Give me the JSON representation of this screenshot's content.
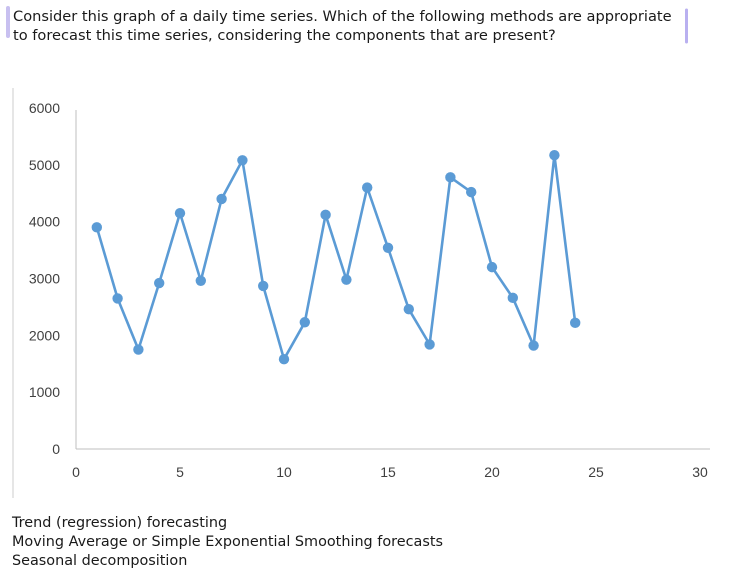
{
  "question": {
    "text": "Consider this graph of a daily time series. Which of the following methods are appropriate to forecast this time series, considering the components that are present?"
  },
  "options": [
    {
      "label": "Trend (regression) forecasting"
    },
    {
      "label": "Moving Average or Simple Exponential Smoothing forecasts"
    },
    {
      "label": "Seasonal decomposition"
    }
  ],
  "colors": {
    "series": "#5b9bd5",
    "axis": "#bfbfbf",
    "tick_text": "#404040",
    "accent_bar": "#c8c0f0"
  },
  "chart_data": {
    "type": "line",
    "title": "",
    "xlabel": "",
    "ylabel": "",
    "xlim": [
      0,
      30
    ],
    "ylim": [
      0,
      6000
    ],
    "xticks": [
      0,
      5,
      10,
      15,
      20,
      25,
      30
    ],
    "yticks": [
      0,
      1000,
      2000,
      3000,
      4000,
      5000,
      6000
    ],
    "grid": false,
    "legend": "none",
    "series": [
      {
        "x": [
          1,
          2,
          3,
          4,
          5,
          6,
          7,
          8,
          9,
          10,
          11,
          12,
          13,
          14,
          15,
          16,
          17,
          18,
          19,
          20,
          21,
          22,
          23,
          24
        ],
        "y": [
          3900,
          2650,
          1750,
          2920,
          4150,
          2960,
          4400,
          5080,
          2870,
          1580,
          2230,
          4120,
          2980,
          4600,
          3540,
          2460,
          1840,
          4780,
          4520,
          3200,
          2660,
          1820,
          5170,
          2220
        ]
      }
    ]
  }
}
